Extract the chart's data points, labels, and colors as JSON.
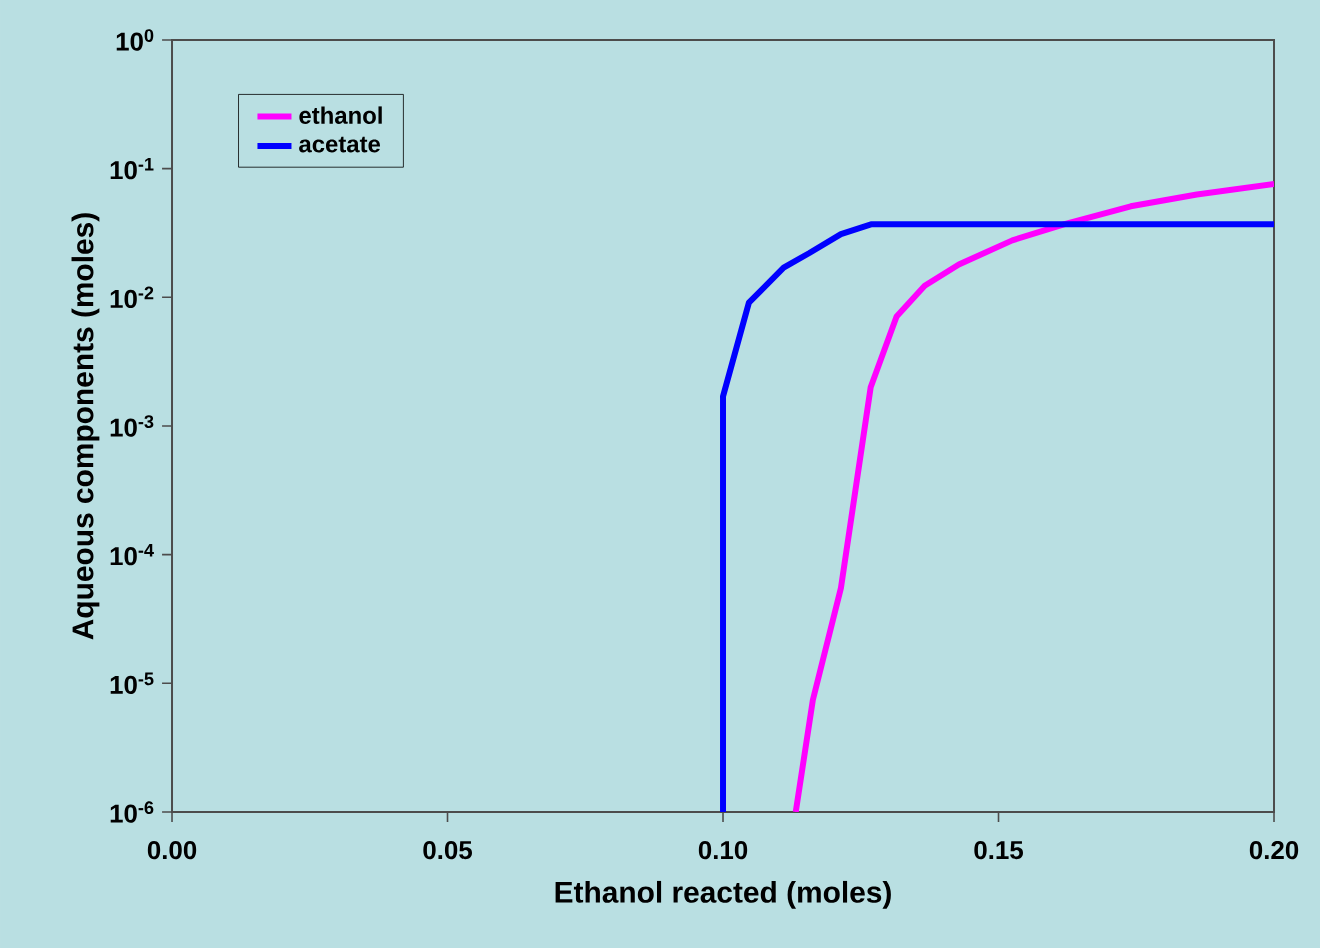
{
  "chart_data": {
    "type": "line",
    "xlabel": "Ethanol reacted (moles)",
    "ylabel": "Aqueous components (moles)",
    "log": "y",
    "xlim": [
      0,
      0.2
    ],
    "xticks": [
      {
        "value": 0,
        "label": "0.00"
      },
      {
        "value": 0.05,
        "label": "0.05"
      },
      {
        "value": 0.1,
        "label": "0.10"
      },
      {
        "value": 0.15,
        "label": "0.15"
      },
      {
        "value": 0.2,
        "label": "0.20"
      }
    ],
    "ylim": [
      1e-06,
      1
    ],
    "yticks": [
      {
        "value": 1,
        "label": "10$^{0}$"
      },
      {
        "value": 0.1,
        "label": "10$^{-1}$"
      },
      {
        "value": 0.01,
        "label": "10$^{-2}$"
      },
      {
        "value": 0.001,
        "label": "10$^{-3}$"
      },
      {
        "value": 0.0001,
        "label": "10$^{-4}$"
      },
      {
        "value": 1e-05,
        "label": "10$^{-5}$"
      },
      {
        "value": 1e-06,
        "label": "10$^{-6}$"
      }
    ],
    "grid": false,
    "legend": "top left",
    "marker": "none",
    "line_style": "solid",
    "series": [
      {
        "name": "ethanol",
        "color": "#ff00ff",
        "x": [
          0.1132,
          0.1163,
          0.1214,
          0.1268,
          0.1315,
          0.1366,
          0.1428,
          0.1525,
          0.162,
          0.174,
          0.186,
          0.2
        ],
        "values": [
          1e-06,
          7.4e-06,
          5.5e-05,
          0.002,
          0.0071,
          0.0123,
          0.018,
          0.0277,
          0.037,
          0.051,
          0.063,
          0.076
        ]
      },
      {
        "name": "acetate",
        "color": "#0000ff",
        "x": [
          0.1,
          0.1,
          0.1047,
          0.111,
          0.1156,
          0.1214,
          0.127,
          0.2
        ],
        "values": [
          1e-06,
          0.0017,
          0.0091,
          0.017,
          0.022,
          0.031,
          0.037,
          0.037
        ]
      }
    ]
  }
}
